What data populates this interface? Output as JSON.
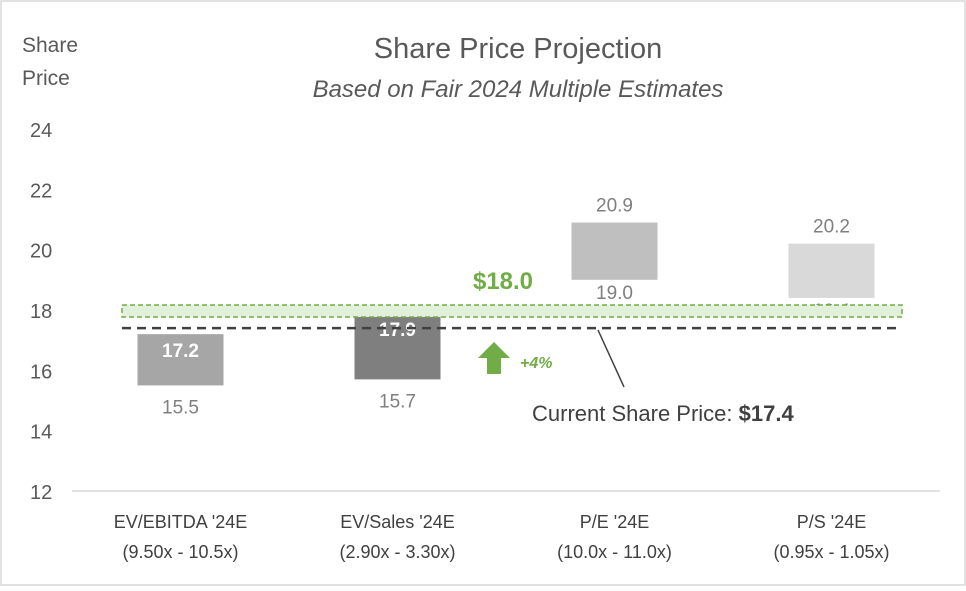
{
  "chart_data": {
    "type": "floating-bar",
    "title": "Share Price Projection",
    "subtitle": "Based on Fair 2024 Multiple Estimates",
    "ylabel_line1": "Share",
    "ylabel_line2": "Price",
    "ylim": [
      12,
      24
    ],
    "yticks": [
      12,
      14,
      16,
      18,
      20,
      22,
      24
    ],
    "grid": false,
    "categories": [
      {
        "label": "EV/EBITDA '24E",
        "sublabel": "(9.50x - 10.5x)",
        "low": 15.5,
        "high": 17.2,
        "low_label": "15.5",
        "high_label": "17.2",
        "color": "#A6A6A6",
        "high_label_inside": true
      },
      {
        "label": "EV/Sales '24E",
        "sublabel": "(2.90x - 3.30x)",
        "low": 15.7,
        "high": 17.9,
        "low_label": "15.7",
        "high_label": "17.9",
        "color": "#7F7F7F",
        "high_label_inside": true
      },
      {
        "label": "P/E '24E",
        "sublabel": "(10.0x - 11.0x)",
        "low": 19.0,
        "high": 20.9,
        "low_label": "19.0",
        "high_label": "20.9",
        "color": "#BFBFBF",
        "high_label_inside": false
      },
      {
        "label": "P/S '24E",
        "sublabel": "(0.95x - 1.05x)",
        "low": 18.4,
        "high": 20.2,
        "low_label": "18.4",
        "high_label": "20.2",
        "color": "#D9D9D9",
        "high_label_inside": false
      }
    ],
    "target": {
      "value": 18.0,
      "label": "$18.0",
      "color": "#70AD47",
      "fill": "#E2EFDA"
    },
    "current": {
      "value": 17.4,
      "label_prefix": "Current Share Price: ",
      "label_value": "$17.4"
    },
    "upside": {
      "label": "+4%",
      "color": "#70AD47"
    }
  }
}
